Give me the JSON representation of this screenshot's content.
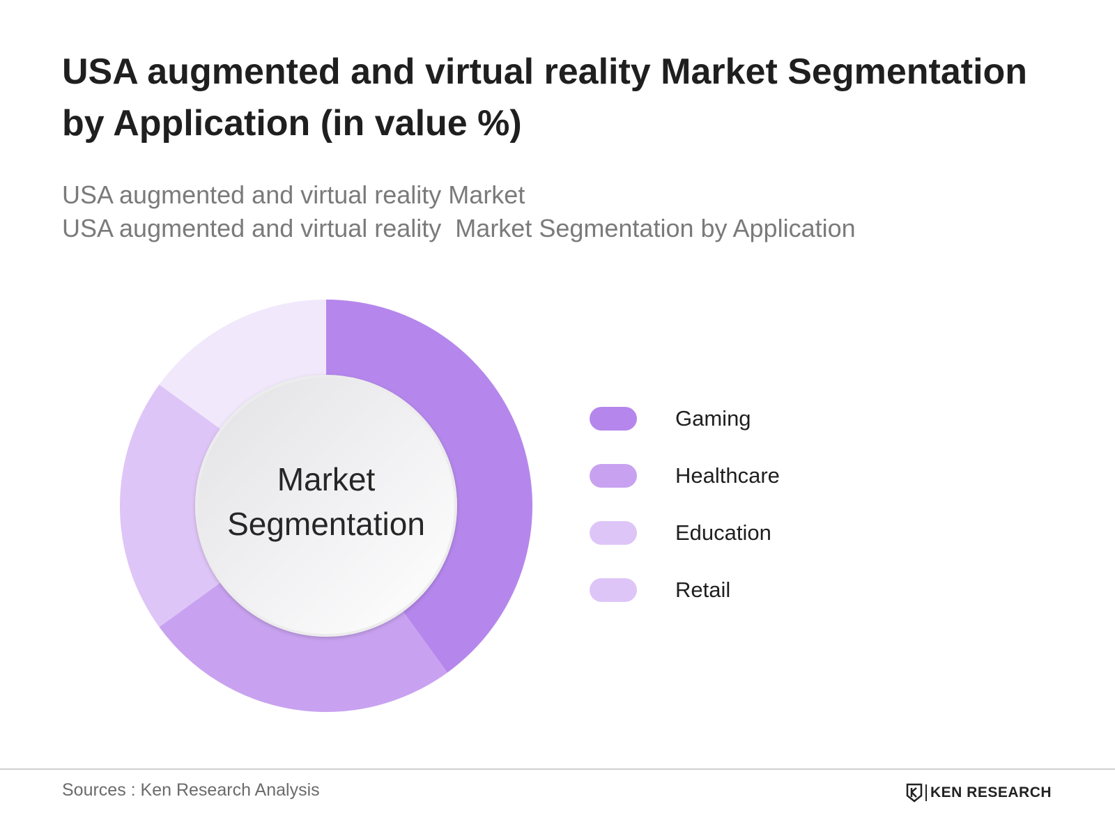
{
  "title": "USA augmented and virtual reality Market Segmentation by Application (in value %)",
  "subtitle_lines": [
    "USA augmented and virtual reality Market",
    "USA augmented and virtual reality  Market Segmentation by Application"
  ],
  "center_label": [
    "Market",
    "Segmentation"
  ],
  "source": "Sources : Ken Research Analysis",
  "logo_text": "KEN RESEARCH",
  "chart_data": {
    "type": "pie",
    "donut": true,
    "categories": [
      "Gaming",
      "Healthcare",
      "Education",
      "Retail"
    ],
    "values": [
      40,
      25,
      20,
      15
    ],
    "colors": [
      "#b587ec",
      "#c8a2f0",
      "#dec5f7",
      "#f1e8fc"
    ],
    "legend_colors": [
      "#b587ec",
      "#c8a2f0",
      "#dec5f7",
      "#dec5f7"
    ],
    "legend": "right"
  }
}
